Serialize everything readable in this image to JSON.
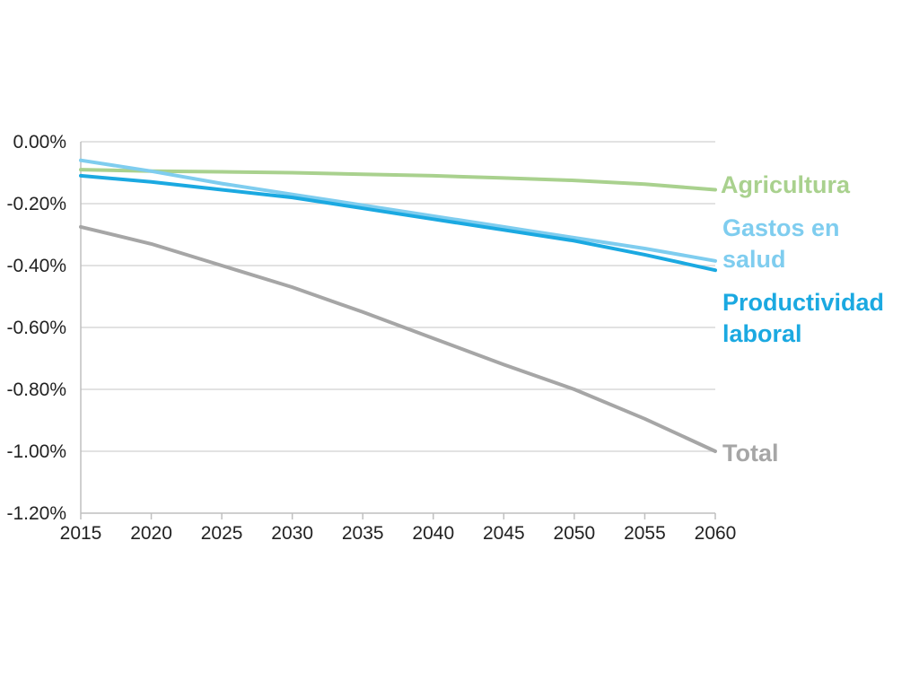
{
  "chart_data": {
    "type": "line",
    "title": "",
    "xlabel": "",
    "ylabel": "",
    "x": [
      2015,
      2020,
      2025,
      2030,
      2035,
      2040,
      2045,
      2050,
      2055,
      2060
    ],
    "x_ticks": [
      "2015",
      "2020",
      "2025",
      "2030",
      "2035",
      "2040",
      "2045",
      "2050",
      "2055",
      "2060"
    ],
    "y_ticks": [
      "0.00%",
      "-0.20%",
      "-0.40%",
      "-0.60%",
      "-0.80%",
      "-1.00%",
      "-1.20%"
    ],
    "y_tick_values": [
      0,
      -0.2,
      -0.4,
      -0.6,
      -0.8,
      -1.0,
      -1.2
    ],
    "xlim": [
      2015,
      2060
    ],
    "ylim": [
      -1.2,
      0
    ],
    "y_unit": "%",
    "grid": "horizontal",
    "legend": "right (inline labels at line ends)",
    "series": [
      {
        "name": "Agricultura",
        "label_lines": [
          "Agricultura"
        ],
        "color": "#a9d18e",
        "values": [
          -0.09,
          -0.095,
          -0.097,
          -0.1,
          -0.105,
          -0.11,
          -0.117,
          -0.125,
          -0.137,
          -0.155
        ]
      },
      {
        "name": "Gastos en salud",
        "label_lines": [
          "Gastos en",
          "salud"
        ],
        "color": "#7fcdef",
        "values": [
          -0.06,
          -0.095,
          -0.135,
          -0.17,
          -0.205,
          -0.24,
          -0.275,
          -0.31,
          -0.345,
          -0.385
        ]
      },
      {
        "name": "Productividad laboral",
        "label_lines": [
          "Productividad",
          "laboral"
        ],
        "color": "#1ba9e1",
        "values": [
          -0.11,
          -0.13,
          -0.155,
          -0.18,
          -0.215,
          -0.25,
          -0.285,
          -0.32,
          -0.365,
          -0.415
        ]
      },
      {
        "name": "Total",
        "label_lines": [
          "Total"
        ],
        "color": "#a6a6a6",
        "values": [
          -0.275,
          -0.33,
          -0.4,
          -0.47,
          -0.55,
          -0.635,
          -0.72,
          -0.8,
          -0.895,
          -1.0
        ]
      }
    ]
  }
}
